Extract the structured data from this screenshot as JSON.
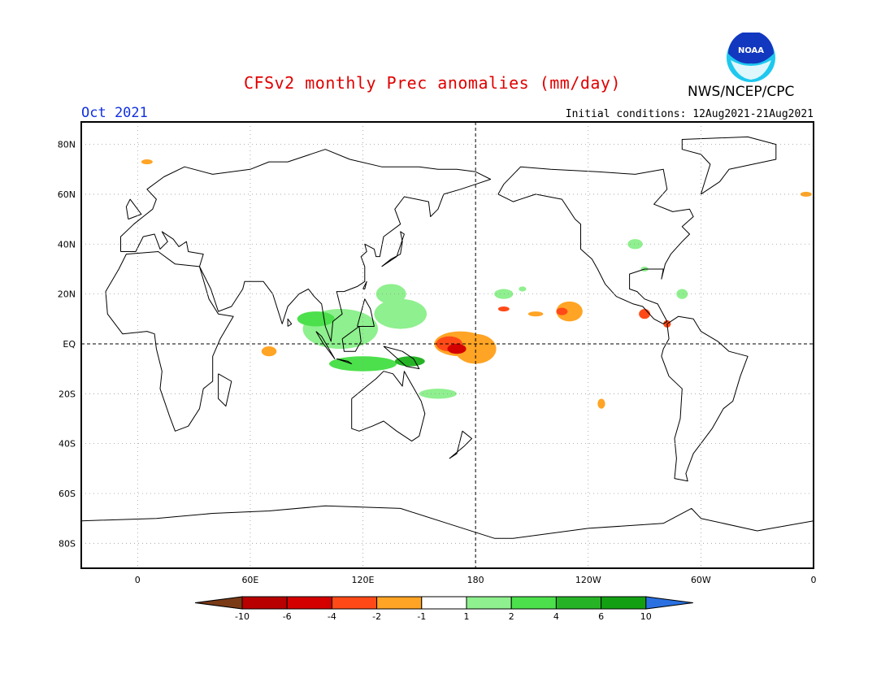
{
  "header": {
    "title": "CFSv2 monthly Prec anomalies (mm/day)",
    "agency": "NWS/NCEP/CPC",
    "logo_text": "NOAA",
    "month": "Oct 2021",
    "initial_conditions": "Initial conditions: 12Aug2021-21Aug2021"
  },
  "map": {
    "projection": "equirectangular",
    "center_longitude": "180",
    "lat_labels": [
      "80N",
      "60N",
      "40N",
      "20N",
      "EQ",
      "20S",
      "40S",
      "60S",
      "80S"
    ],
    "lat_values": [
      80,
      60,
      40,
      20,
      0,
      -20,
      -40,
      -60,
      -80
    ],
    "lon_labels": [
      "0",
      "60E",
      "120E",
      "180",
      "120W",
      "60W",
      "0"
    ],
    "lon_values": [
      0,
      60,
      120,
      180,
      240,
      300,
      360
    ],
    "grid": "dotted",
    "reference_lines": [
      "EQ",
      "180"
    ]
  },
  "legend": {
    "tick_labels": [
      "-10",
      "-6",
      "-4",
      "-2",
      "-1",
      "1",
      "2",
      "4",
      "6",
      "10"
    ],
    "colors": [
      "#7a3a16",
      "#b80000",
      "#d40000",
      "#ff4a18",
      "#ffa424",
      "#ffffff",
      "#8ef08e",
      "#4ce04c",
      "#26b426",
      "#12a012",
      "#2a70e0"
    ]
  },
  "colors": {
    "title": "#e00000",
    "month": "#1030e0"
  }
}
